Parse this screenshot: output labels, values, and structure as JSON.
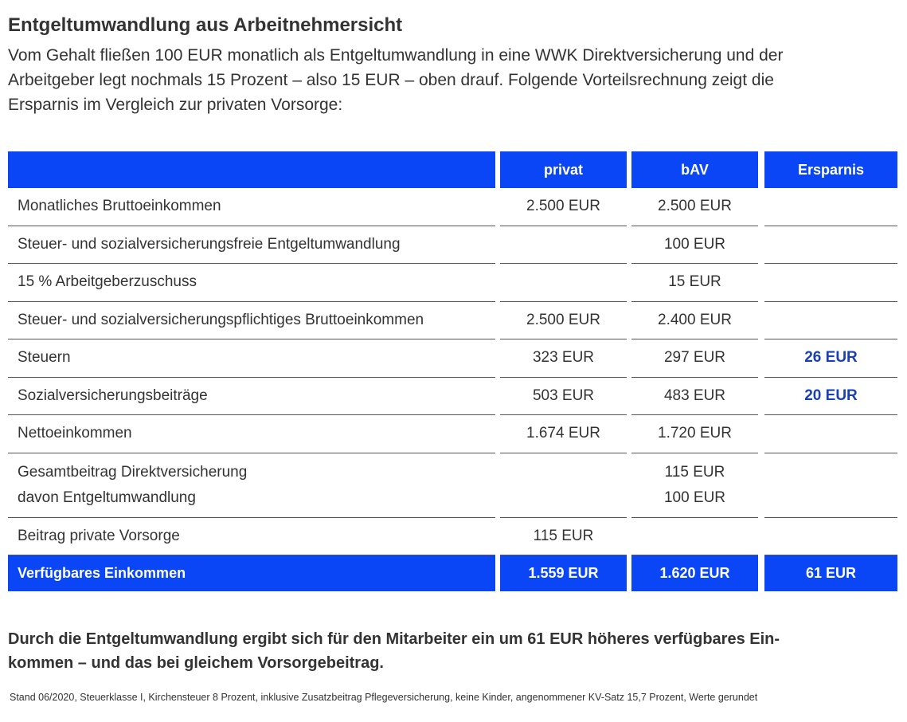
{
  "header": {
    "title": "Entgeltumwandlung aus Arbeitnehmersicht",
    "intro": [
      "Vom Gehalt fließen 100 EUR monatlich als Entgeltumwandlung in eine WWK Direktversicherung und der",
      "Arbeitgeber legt nochmals 15 Prozent – also 15 EUR – oben drauf. Folgende Vorteilsrechnung zeigt die",
      "Ersparnis im Vergleich zur privaten Vorsorge:"
    ]
  },
  "table": {
    "columns": [
      "privat",
      "bAV",
      "Ersparnis"
    ],
    "rows": [
      {
        "label": [
          "Monatliches Bruttoeinkommen"
        ],
        "privat": [
          "2.500 EUR"
        ],
        "bav": [
          "2.500 EUR"
        ]
      },
      {
        "label": [
          "Steuer- und sozialversicherungsfreie Entgeltumwandlung"
        ],
        "bav": [
          "100 EUR"
        ]
      },
      {
        "label": [
          "15 % Arbeitgeberzuschuss"
        ],
        "bav": [
          "15 EUR"
        ]
      },
      {
        "label": [
          "Steuer- und sozialversicherungspflichtiges Bruttoeinkommen"
        ],
        "privat": [
          "2.500 EUR"
        ],
        "bav": [
          "2.400 EUR"
        ]
      },
      {
        "label": [
          "Steuern"
        ],
        "privat": [
          "323 EUR"
        ],
        "bav": [
          "297 EUR"
        ],
        "ersparnis": [
          "26 EUR"
        ]
      },
      {
        "label": [
          "Sozialversicherungsbeiträge"
        ],
        "privat": [
          "503 EUR"
        ],
        "bav": [
          "483 EUR"
        ],
        "ersparnis": [
          "20 EUR"
        ]
      },
      {
        "label": [
          "Nettoeinkommen"
        ],
        "privat": [
          "1.674 EUR"
        ],
        "bav": [
          "1.720 EUR"
        ]
      },
      {
        "label": [
          "Gesamtbeitrag Direktversicherung",
          "davon Entgeltumwandlung"
        ],
        "bav": [
          "115 EUR",
          "100 EUR"
        ]
      },
      {
        "label": [
          "Beitrag private Vorsorge"
        ],
        "privat": [
          "115 EUR"
        ]
      }
    ],
    "total": {
      "label": "Verfügbares Einkommen",
      "privat": "1.559 EUR",
      "bav": "1.620 EUR",
      "ersparnis": "61 EUR"
    }
  },
  "conclusion": [
    "Durch die Entgeltumwandlung ergibt sich für den Mitarbeiter ein um 61 EUR höheres verfügbares Ein-",
    "kommen – und das bei gleichem Vorsorgebeitrag."
  ],
  "footnote": "Stand 06/2020, Steuerklasse I, Kirchensteuer 8 Prozent, inklusive Zusatzbeitrag Pflegeversicherung, keine Kinder, angenommener KV-Satz 15,7 Prozent, Werte gerundet"
}
